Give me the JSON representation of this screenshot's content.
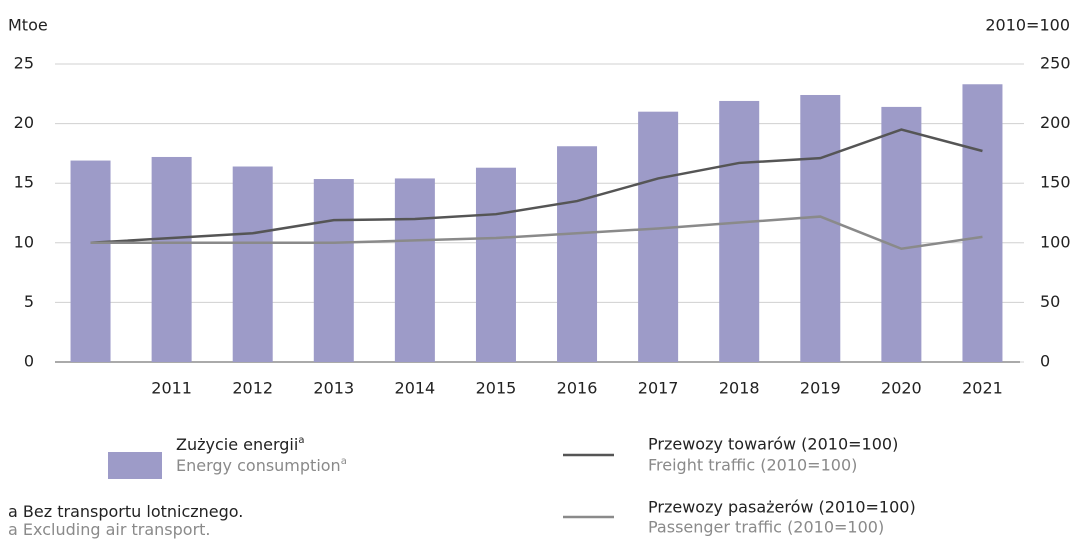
{
  "chart_data": {
    "type": "bar_line",
    "y_label": "Mtoe",
    "y2_label": "2010=100",
    "categories": [
      null,
      "2011",
      "2012",
      "2013",
      "2014",
      "2015",
      "2016",
      "2017",
      "2018",
      "2019",
      "2020",
      "2021"
    ],
    "series": [
      {
        "name": "Zużycie energii",
        "name_en": "Energy consumption",
        "note_mark": "a",
        "type": "bar",
        "color": "#9d9bc8",
        "values": [
          16.9,
          17.2,
          16.4,
          15.35,
          15.4,
          16.3,
          18.1,
          21.0,
          21.9,
          22.4,
          21.4,
          23.3
        ]
      },
      {
        "name": "Przewozy towarów (2010=100)",
        "name_en": "Freight traffic (2010=100)",
        "type": "line",
        "axis": "y2",
        "color": "#555555",
        "values": [
          100,
          104,
          108,
          119,
          120,
          124,
          135,
          154,
          167,
          171,
          195,
          177
        ]
      },
      {
        "name": "Przewozy pasażerów (2010=100)",
        "name_en": "Passenger traffic (2010=100)",
        "type": "line",
        "axis": "y2",
        "color": "#8a8a8a",
        "values": [
          100,
          100,
          100,
          100,
          102,
          104,
          108,
          112,
          117,
          122,
          95,
          105
        ]
      }
    ],
    "ylim": [
      0,
      25
    ],
    "yticks": [
      0,
      5,
      10,
      15,
      20,
      25
    ],
    "y2lim": [
      0,
      250
    ],
    "y2ticks": [
      0,
      50,
      100,
      150,
      200,
      250
    ],
    "grid": true,
    "footnote": {
      "mark": "a",
      "text": "Bez transportu lotnicznego.",
      "text_en": "Excluding air transport."
    }
  }
}
